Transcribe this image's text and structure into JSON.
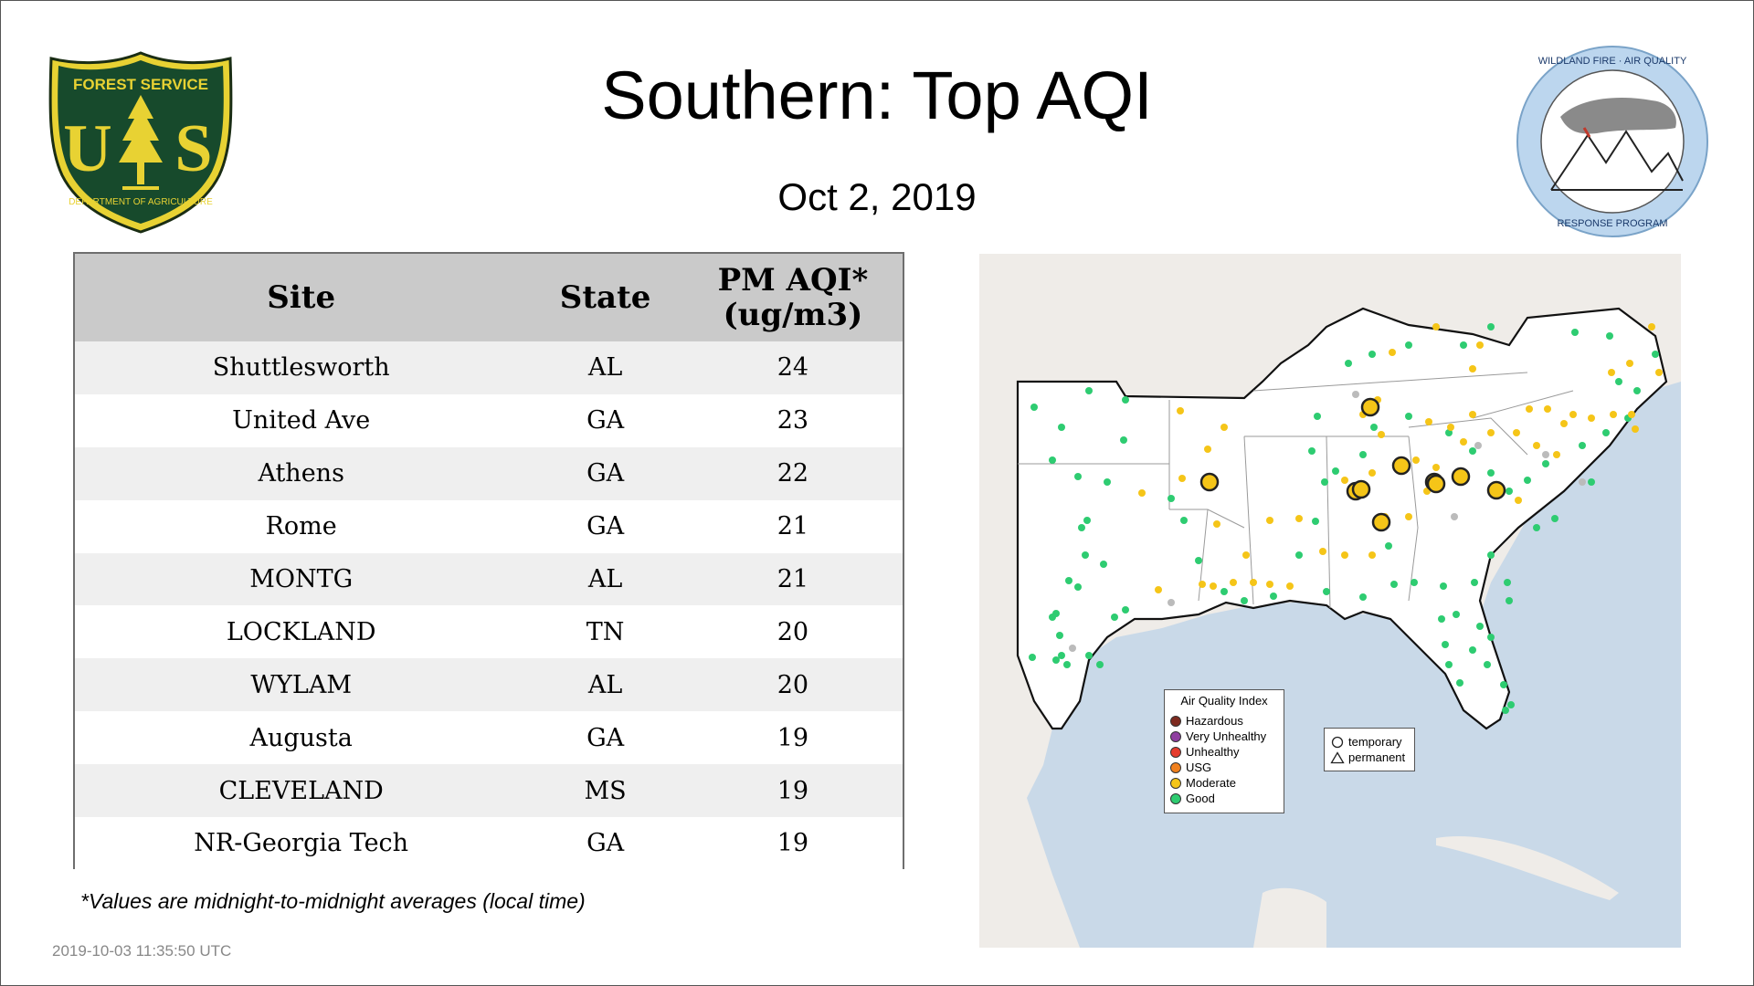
{
  "header": {
    "title": "Southern: Top AQI",
    "date": "Oct  2, 2019"
  },
  "logos": {
    "forest_service": {
      "top_text": "FOREST SERVICE",
      "monogram": "US",
      "bottom_text": "DEPARTMENT OF AGRICULTURE"
    },
    "wildland": {
      "top_text": "WILDLAND FIRE · AIR QUALITY",
      "bottom_text": "RESPONSE PROGRAM"
    }
  },
  "table": {
    "headers": {
      "site": "Site",
      "state": "State",
      "pm_line1": "PM AQI*",
      "pm_line2": "(ug/m3)"
    },
    "rows": [
      {
        "site": "Shuttlesworth",
        "state": "AL",
        "value": "24"
      },
      {
        "site": "United Ave",
        "state": "GA",
        "value": "23"
      },
      {
        "site": "Athens",
        "state": "GA",
        "value": "22"
      },
      {
        "site": "Rome",
        "state": "GA",
        "value": "21"
      },
      {
        "site": "MONTG",
        "state": "AL",
        "value": "21"
      },
      {
        "site": "LOCKLAND",
        "state": "TN",
        "value": "20"
      },
      {
        "site": "WYLAM",
        "state": "AL",
        "value": "20"
      },
      {
        "site": "Augusta",
        "state": "GA",
        "value": "19"
      },
      {
        "site": "CLEVELAND",
        "state": "MS",
        "value": "19"
      },
      {
        "site": "NR-Georgia Tech",
        "state": "GA",
        "value": "19"
      }
    ]
  },
  "footnote": "*Values are midnight-to-midnight averages (local time)",
  "timestamp": "2019-10-03 11:35:50 UTC",
  "map": {
    "legend_title": "Air Quality Index",
    "aqi_categories": [
      {
        "label": "Hazardous",
        "color": "#7e2a1f"
      },
      {
        "label": "Very Unhealthy",
        "color": "#8f3fa0"
      },
      {
        "label": "Unhealthy",
        "color": "#e53b2c"
      },
      {
        "label": "USG",
        "color": "#f0801e"
      },
      {
        "label": "Moderate",
        "color": "#f5c518"
      },
      {
        "label": "Good",
        "color": "#2ecc71"
      }
    ],
    "monitor_types": [
      "temporary",
      "permanent"
    ],
    "colors": {
      "water": "#c9d9e8",
      "land": "#efece8",
      "region": "#ffffff",
      "good": "#2ecc71",
      "moderate": "#f5c518",
      "missing": "#bbbbbb"
    }
  }
}
